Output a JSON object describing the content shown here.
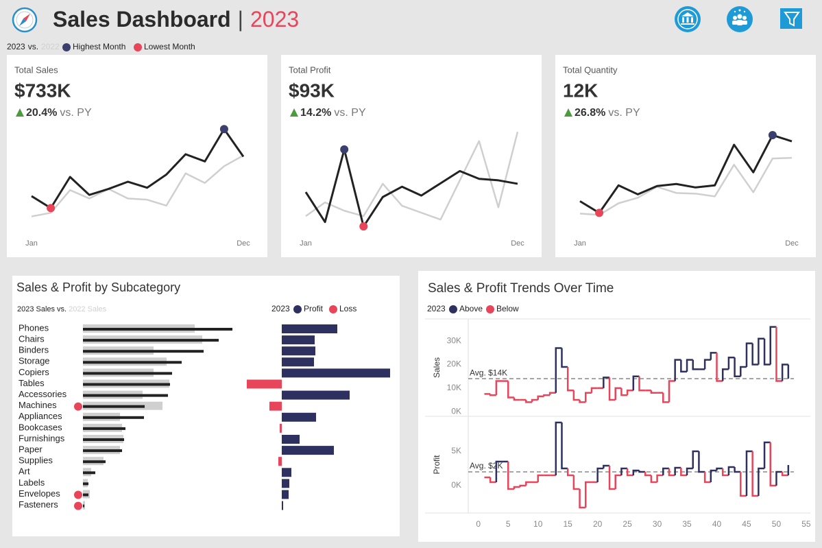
{
  "header": {
    "title": "Sales Dashboard",
    "separator": "|",
    "year": "2023",
    "legend": {
      "current": "2023",
      "joiner": "vs.",
      "previous": "2022",
      "highest": "Highest Month",
      "lowest": "Lowest Month",
      "highest_color": "#3b3f6e",
      "lowest_color": "#e8445a"
    }
  },
  "chart_data": [
    {
      "type": "kpi-line",
      "title": "Total Sales",
      "kpi": "$733K",
      "change": "20.4%",
      "change_note": "vs. PY",
      "categories": [
        "Jan",
        null,
        null,
        null,
        null,
        null,
        null,
        null,
        null,
        null,
        null,
        "Dec"
      ],
      "series": [
        {
          "color": "#222222",
          "values": [
            45,
            35,
            61,
            46,
            51,
            57,
            52,
            63,
            80,
            74,
            101,
            78
          ]
        },
        {
          "color": "#cfcfcf",
          "values": [
            28,
            31,
            50,
            43,
            51,
            43,
            42,
            37,
            64,
            56,
            70,
            79
          ]
        }
      ],
      "ylim": [
        18,
        100
      ]
    },
    {
      "type": "kpi-line",
      "title": "Total Profit",
      "kpi": "$93K",
      "change": "14.2%",
      "change_note": "vs. PY",
      "categories": [
        "Jan",
        null,
        null,
        null,
        null,
        null,
        null,
        null,
        null,
        null,
        null,
        "Dec"
      ],
      "series": [
        {
          "color": "#222222",
          "values": [
            7.4,
            1.3,
            16.1,
            0.4,
            6.4,
            8.5,
            6.7,
            9.2,
            11.7,
            10.1,
            9.8,
            9.1
          ]
        },
        {
          "color": "#cfcfcf",
          "values": [
            2.5,
            5.3,
            3.6,
            2.5,
            9.1,
            4.6,
            3.2,
            1.8,
            9.8,
            17.8,
            4.3,
            19.7
          ]
        }
      ],
      "ylim": [
        0,
        20
      ]
    },
    {
      "type": "kpi-line",
      "title": "Total Quantity",
      "kpi": "12K",
      "change": "26.8%",
      "change_note": "vs. PY",
      "categories": [
        "Jan",
        null,
        null,
        null,
        null,
        null,
        null,
        null,
        null,
        null,
        null,
        "Dec"
      ],
      "series": [
        {
          "color": "#222222",
          "values": [
            796,
            660,
            980,
            876,
            972,
            996,
            956,
            980,
            1452,
            1132,
            1564,
            1492
          ]
        },
        {
          "color": "#cfcfcf",
          "values": [
            652,
            636,
            772,
            836,
            964,
            892,
            884,
            852,
            1220,
            900,
            1292,
            1300
          ]
        }
      ],
      "ylim": [
        480,
        1620
      ]
    },
    {
      "type": "subcategory-bars",
      "title": "Sales & Profit by Subcategory",
      "legend_joiner": "vs.",
      "categories": [
        "Phones",
        "Chairs",
        "Binders",
        "Storage",
        "Copiers",
        "Tables",
        "Accessories",
        "Machines",
        "Appliances",
        "Bookcases",
        "Furnishings",
        "Paper",
        "Supplies",
        "Art",
        "Labels",
        "Envelopes",
        "Fasteners"
      ],
      "series": [
        {
          "name": "2023 Sales",
          "color": "#222222",
          "values": [
            109,
            99,
            88,
            72,
            65,
            63.5,
            62,
            45,
            44.5,
            31,
            30,
            28.5,
            16.5,
            9,
            4,
            4,
            1
          ]
        },
        {
          "name": "2022 Sales",
          "color": "#cfcfcf",
          "values": [
            81.5,
            87,
            51.5,
            61,
            51.5,
            63,
            43.5,
            58,
            27,
            28.5,
            29.5,
            27,
            15,
            6,
            3.5,
            5,
            1.5
          ]
        },
        {
          "name": "Profit",
          "color": "#2e3160",
          "values": [
            16.2,
            9.6,
            9.8,
            9.4,
            31.6,
            -10.2,
            19.8,
            -3.6,
            10,
            -0.6,
            5.2,
            15.2,
            -1,
            2.8,
            2.2,
            2,
            0.4
          ]
        }
      ],
      "profit_year": "2023",
      "loss_label": "Loss",
      "loss_color": "#e8445a",
      "sales_lim": [
        0,
        120
      ],
      "profit_lim": [
        -11,
        32
      ]
    },
    {
      "type": "step-trend",
      "title": "Sales & Profit Trends Over Time",
      "legend": {
        "year": "2023",
        "above": "Above",
        "below": "Below",
        "above_color": "#2e3160",
        "below_color": "#e8445a"
      },
      "x": [
        1,
        2,
        3,
        4,
        5,
        6,
        7,
        8,
        9,
        10,
        11,
        12,
        13,
        14,
        15,
        16,
        17,
        18,
        19,
        20,
        21,
        22,
        23,
        24,
        25,
        26,
        27,
        28,
        29,
        30,
        31,
        32,
        33,
        34,
        35,
        36,
        37,
        38,
        39,
        40,
        41,
        42,
        43,
        44,
        45,
        46,
        47,
        48,
        49,
        50,
        51,
        52
      ],
      "xlim": [
        -1.7,
        55.7
      ],
      "xticks": [
        0,
        5,
        10,
        15,
        20,
        25,
        30,
        35,
        40,
        45,
        50,
        55
      ],
      "panels": [
        {
          "ylabel": "Sales",
          "values": [
            7500,
            7000,
            13000,
            13000,
            6000,
            5000,
            5000,
            4000,
            5000,
            6500,
            7000,
            8000,
            27000,
            19000,
            9000,
            5000,
            4000,
            8000,
            10000,
            10000,
            14500,
            5000,
            10000,
            7000,
            9000,
            15000,
            9000,
            9000,
            8000,
            8000,
            4000,
            13000,
            22000,
            17000,
            22000,
            18000,
            18000,
            22000,
            25000,
            13000,
            18000,
            23000,
            15000,
            19000,
            29000,
            20000,
            31000,
            20000,
            36000,
            13000,
            20000,
            14000
          ],
          "ylim": [
            -2000,
            39400
          ],
          "yticks": [
            {
              "value": 0,
              "label": "0K"
            },
            {
              "value": 10000,
              "label": "10K"
            },
            {
              "value": 20000,
              "label": "20K"
            },
            {
              "value": 30000,
              "label": "30K"
            }
          ],
          "average": {
            "value": 14000,
            "label": "Avg. $14K"
          }
        },
        {
          "ylabel": "Profit",
          "values": [
            1200,
            500,
            3500,
            3500,
            -500,
            -200,
            0,
            500,
            500,
            1500,
            1500,
            1500,
            9200,
            2500,
            1500,
            -500,
            -3200,
            500,
            500,
            2500,
            2900,
            -500,
            1500,
            2500,
            1500,
            2200,
            2000,
            1500,
            500,
            1500,
            2500,
            1500,
            2600,
            1500,
            2500,
            5000,
            2000,
            500,
            2200,
            2500,
            1500,
            2700,
            2000,
            -1500,
            5000,
            -1500,
            2500,
            6300,
            0,
            2000,
            1500,
            3000
          ],
          "ylim": [
            -4000,
            10100
          ],
          "yticks": [
            {
              "value": 0,
              "label": "0K"
            },
            {
              "value": 5000,
              "label": "5K"
            }
          ],
          "average": {
            "value": 2000,
            "label": "Avg. $2K"
          }
        }
      ]
    }
  ]
}
